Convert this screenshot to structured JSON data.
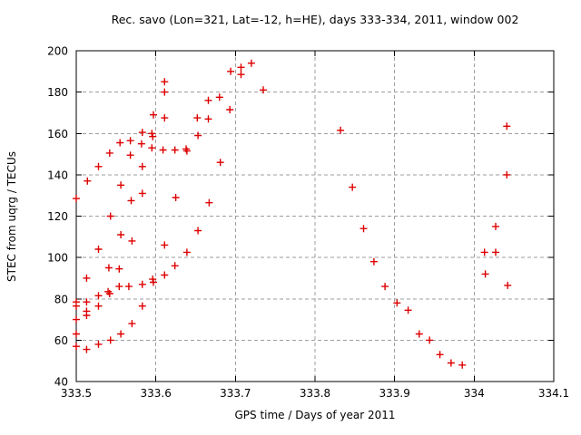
{
  "chart_data": {
    "type": "scatter",
    "title": "Rec. savo (Lon=321, Lat=-12, h=HE), days 333-334, 2011, window 002",
    "xlabel": "GPS time / Days of year 2011",
    "ylabel": "STEC from uqrg / TECUs",
    "xlim": [
      333.5,
      334.1
    ],
    "ylim": [
      40,
      200
    ],
    "grid": true,
    "legend": "none",
    "marker": {
      "shape": "plus",
      "color": "#dd0000"
    },
    "x_ticks": [
      {
        "value": 333.5,
        "label": "333.5"
      },
      {
        "value": 333.6,
        "label": "333.6"
      },
      {
        "value": 333.7,
        "label": "333.7"
      },
      {
        "value": 333.8,
        "label": "333.8"
      },
      {
        "value": 333.9,
        "label": "333.9"
      },
      {
        "value": 334.0,
        "label": "334"
      },
      {
        "value": 334.1,
        "label": "334.1"
      }
    ],
    "y_ticks": [
      {
        "value": 40,
        "label": "40"
      },
      {
        "value": 60,
        "label": "60"
      },
      {
        "value": 80,
        "label": "80"
      },
      {
        "value": 100,
        "label": "100"
      },
      {
        "value": 120,
        "label": "120"
      },
      {
        "value": 140,
        "label": "140"
      },
      {
        "value": 160,
        "label": "160"
      },
      {
        "value": 180,
        "label": "180"
      },
      {
        "value": 200,
        "label": "200"
      }
    ],
    "points": [
      [
        333.5,
        128.5
      ],
      [
        333.5,
        78.5
      ],
      [
        333.5,
        76.5
      ],
      [
        333.5,
        70
      ],
      [
        333.5,
        63
      ],
      [
        333.5,
        57
      ],
      [
        333.513,
        90
      ],
      [
        333.513,
        78.5
      ],
      [
        333.513,
        74
      ],
      [
        333.513,
        72
      ],
      [
        333.513,
        55.5
      ],
      [
        333.514,
        137
      ],
      [
        333.528,
        144
      ],
      [
        333.528,
        104
      ],
      [
        333.528,
        81.5
      ],
      [
        333.528,
        76.5
      ],
      [
        333.528,
        58
      ],
      [
        333.54,
        83.5
      ],
      [
        333.541,
        95
      ],
      [
        333.542,
        150.5
      ],
      [
        333.542,
        82.5
      ],
      [
        333.543,
        120
      ],
      [
        333.543,
        60
      ],
      [
        333.554,
        94.5
      ],
      [
        333.554,
        86
      ],
      [
        333.555,
        155.5
      ],
      [
        333.556,
        135
      ],
      [
        333.556,
        111
      ],
      [
        333.556,
        63
      ],
      [
        333.566,
        86
      ],
      [
        333.568,
        156.5
      ],
      [
        333.568,
        149.5
      ],
      [
        333.569,
        127.5
      ],
      [
        333.57,
        108
      ],
      [
        333.57,
        68
      ],
      [
        333.582,
        155
      ],
      [
        333.583,
        160.5
      ],
      [
        333.583,
        144
      ],
      [
        333.583,
        131
      ],
      [
        333.583,
        87
      ],
      [
        333.583,
        76.5
      ],
      [
        333.595,
        160
      ],
      [
        333.595,
        153
      ],
      [
        333.596,
        158.5
      ],
      [
        333.596,
        89.5
      ],
      [
        333.597,
        169
      ],
      [
        333.597,
        88
      ],
      [
        333.609,
        152
      ],
      [
        333.611,
        185
      ],
      [
        333.611,
        180
      ],
      [
        333.611,
        167.5
      ],
      [
        333.611,
        106
      ],
      [
        333.611,
        91.5
      ],
      [
        333.624,
        152
      ],
      [
        333.624,
        96
      ],
      [
        333.625,
        129
      ],
      [
        333.638,
        152.5
      ],
      [
        333.639,
        151.5
      ],
      [
        333.639,
        102.5
      ],
      [
        333.652,
        167.5
      ],
      [
        333.653,
        159
      ],
      [
        333.653,
        113
      ],
      [
        333.666,
        176
      ],
      [
        333.666,
        167
      ],
      [
        333.667,
        126.5
      ],
      [
        333.68,
        177.5
      ],
      [
        333.681,
        146
      ],
      [
        333.693,
        171.5
      ],
      [
        333.694,
        190
      ],
      [
        333.707,
        192
      ],
      [
        333.707,
        188.5
      ],
      [
        333.72,
        194
      ],
      [
        333.735,
        181
      ],
      [
        333.832,
        161.5
      ],
      [
        333.847,
        134
      ],
      [
        333.861,
        114
      ],
      [
        333.874,
        98
      ],
      [
        333.888,
        86
      ],
      [
        333.903,
        78
      ],
      [
        333.917,
        74.5
      ],
      [
        333.931,
        63
      ],
      [
        333.944,
        60
      ],
      [
        333.957,
        53
      ],
      [
        333.971,
        49
      ],
      [
        333.985,
        48
      ],
      [
        334.013,
        102.5
      ],
      [
        334.014,
        92
      ],
      [
        334.027,
        115
      ],
      [
        334.027,
        102.5
      ],
      [
        334.041,
        163.5
      ],
      [
        334.041,
        140
      ],
      [
        334.042,
        86.5
      ]
    ]
  }
}
